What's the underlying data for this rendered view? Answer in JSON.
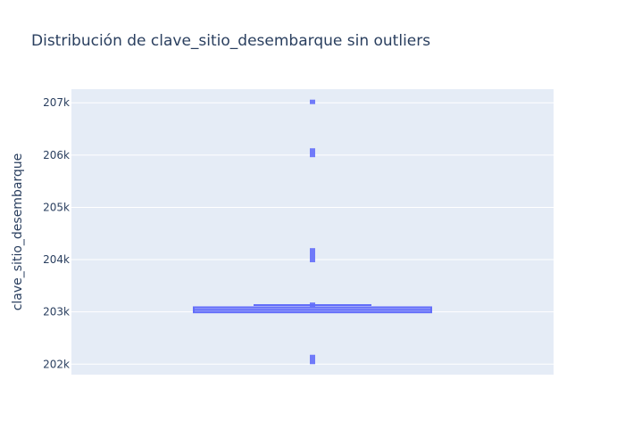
{
  "chart_data": {
    "type": "box",
    "title": "Distribución de clave_sitio_desembarque sin outliers",
    "xlabel": "",
    "ylabel": "clave_sitio_desembarque",
    "ylim": [
      201800,
      207260
    ],
    "yticks": [
      202000,
      203000,
      204000,
      205000,
      206000,
      207000
    ],
    "ytick_labels": [
      "202k",
      "203k",
      "204k",
      "205k",
      "206k",
      "207k"
    ],
    "grid": true,
    "box": {
      "q1": 203000,
      "median": 203040,
      "q3": 203080,
      "lower_fence": 203000,
      "upper_fence": 203080,
      "mean": 203130
    },
    "points": [
      {
        "y": 207000,
        "y2": 207060
      },
      {
        "y": 205960,
        "y2": 206130
      },
      {
        "y": 203950,
        "y2": 204220
      },
      {
        "y": 203080,
        "y2": 203180
      },
      {
        "y": 202000,
        "y2": 202180
      }
    ],
    "colors": {
      "box": "#636efa",
      "plot_bg": "#e5ecf6",
      "grid": "#ffffff",
      "text": "#2a3f5f"
    }
  }
}
